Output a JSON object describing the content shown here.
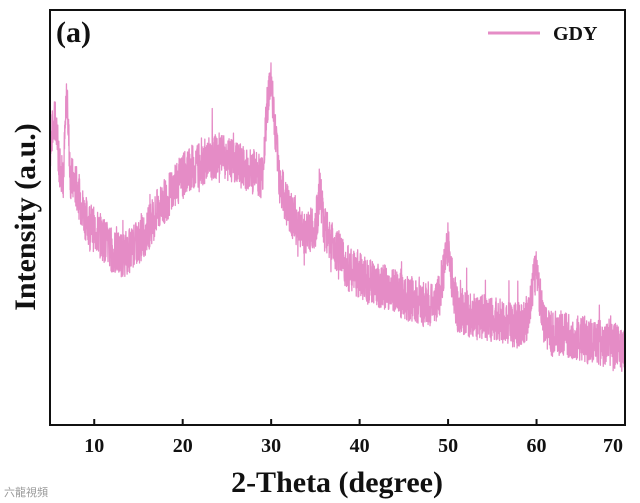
{
  "chart_data": {
    "type": "line",
    "panel_label": "(a)",
    "title": "",
    "xlabel": "2-Theta (degree)",
    "ylabel": "Intensity (a.u.)",
    "xlim": [
      5,
      70
    ],
    "ylim": [
      0,
      100
    ],
    "x_ticks": [
      10,
      20,
      30,
      40,
      50,
      60,
      70
    ],
    "y_ticks_shown": false,
    "grid": false,
    "legend": {
      "position": "top-right"
    },
    "series": [
      {
        "name": "GDY",
        "color": "#e58cc6",
        "x": [
          5,
          5.5,
          6,
          6.5,
          6.9,
          7.3,
          8,
          9,
          10,
          11,
          12,
          13,
          14,
          15,
          16,
          17,
          18,
          19,
          20,
          21,
          22,
          23,
          24,
          25,
          26,
          27,
          28,
          29,
          29.6,
          30,
          30.4,
          31,
          32,
          33,
          34,
          35,
          35.6,
          36,
          37,
          38,
          39,
          40,
          41,
          42,
          43,
          44,
          45,
          46,
          47,
          48,
          49,
          49.6,
          50,
          50.5,
          51,
          52,
          53,
          54,
          55,
          56,
          57,
          58,
          59,
          59.6,
          60,
          60.5,
          61,
          62,
          63,
          64,
          65,
          66,
          67,
          68,
          69,
          70
        ],
        "y": [
          66,
          75,
          64,
          60,
          80,
          60,
          57,
          50,
          47,
          45,
          42,
          41,
          42,
          44,
          47,
          51,
          54,
          57,
          60,
          62,
          63,
          64,
          65,
          64,
          63,
          62,
          61,
          60,
          78,
          84,
          72,
          58,
          52,
          48,
          46,
          48,
          56,
          47,
          44,
          40,
          37,
          36,
          35,
          34,
          33,
          32,
          31,
          30,
          29,
          29,
          31,
          39,
          44,
          34,
          28,
          27,
          26,
          26,
          25,
          25,
          24,
          24,
          26,
          34,
          38,
          29,
          23,
          22,
          22,
          21,
          21,
          20,
          20,
          19,
          19,
          18
        ]
      }
    ]
  },
  "watermark": "六龍視頻"
}
